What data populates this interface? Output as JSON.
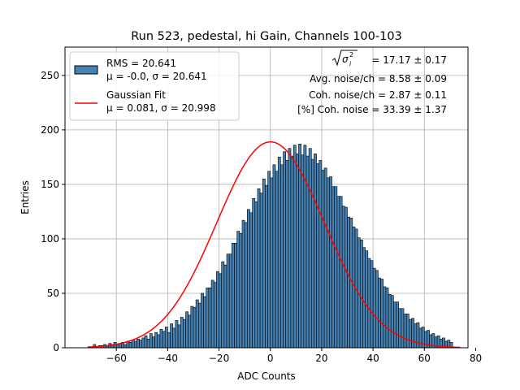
{
  "chart_data": {
    "type": "bar",
    "title": "Run 523, pedestal, hi Gain, Channels 100-103",
    "xlabel": "ADC Counts",
    "ylabel": "Entries",
    "xlim": [
      -80,
      77
    ],
    "ylim": [
      0,
      276
    ],
    "xticks": [
      -60,
      -40,
      -20,
      0,
      20,
      40,
      60,
      80
    ],
    "yticks": [
      0,
      50,
      100,
      150,
      200,
      250
    ],
    "grid": true,
    "bin_start": -71,
    "bin_width": 1,
    "colors": {
      "bars": "#4682b4",
      "bar_edge": "#000000",
      "fit": "#ff0000",
      "grid": "#b0b0b0"
    },
    "series": [
      {
        "name": "histogram",
        "legend_line1": "RMS = 20.641",
        "legend_line2": "μ = -0.0, σ = 20.641",
        "values": [
          1,
          1,
          3,
          1,
          2,
          2,
          3,
          2,
          4,
          3,
          5,
          3,
          4,
          5,
          3,
          6,
          5,
          7,
          6,
          8,
          7,
          9,
          11,
          8,
          13,
          10,
          14,
          12,
          17,
          15,
          19,
          14,
          22,
          18,
          25,
          21,
          28,
          26,
          33,
          30,
          38,
          37,
          44,
          41,
          50,
          47,
          55,
          55,
          62,
          60,
          70,
          68,
          79,
          76,
          86,
          86,
          96,
          96,
          107,
          105,
          117,
          115,
          127,
          124,
          137,
          134,
          146,
          142,
          155,
          149,
          162,
          156,
          168,
          162,
          175,
          168,
          180,
          172,
          183,
          176,
          186,
          178,
          187,
          177,
          186,
          176,
          183,
          173,
          178,
          169,
          172,
          163,
          165,
          156,
          157,
          148,
          148,
          139,
          139,
          130,
          129,
          120,
          119,
          111,
          109,
          101,
          99,
          92,
          89,
          82,
          80,
          73,
          71,
          64,
          63,
          56,
          55,
          49,
          48,
          42,
          42,
          36,
          36,
          31,
          31,
          26,
          27,
          22,
          23,
          18,
          19,
          15,
          16,
          12,
          13,
          10,
          11,
          8,
          9,
          6,
          7,
          5
        ]
      },
      {
        "name": "Gaussian Fit",
        "legend_line1": "Gaussian Fit",
        "legend_line2": "μ = 0.081, σ = 20.998",
        "type": "line",
        "mu": 0.081,
        "sigma": 20.998,
        "amplitude": 189,
        "x_range": [
          -71,
          74
        ]
      }
    ],
    "annotations": [
      {
        "prefix": "",
        "value": "= 17.17 ± 0.17"
      },
      {
        "text": "Avg. noise/ch = 8.58 ± 0.09"
      },
      {
        "text": "Coh. noise/ch = 2.87 ± 0.11"
      },
      {
        "text": "[%] Coh. noise = 33.39 ± 1.37"
      }
    ]
  }
}
